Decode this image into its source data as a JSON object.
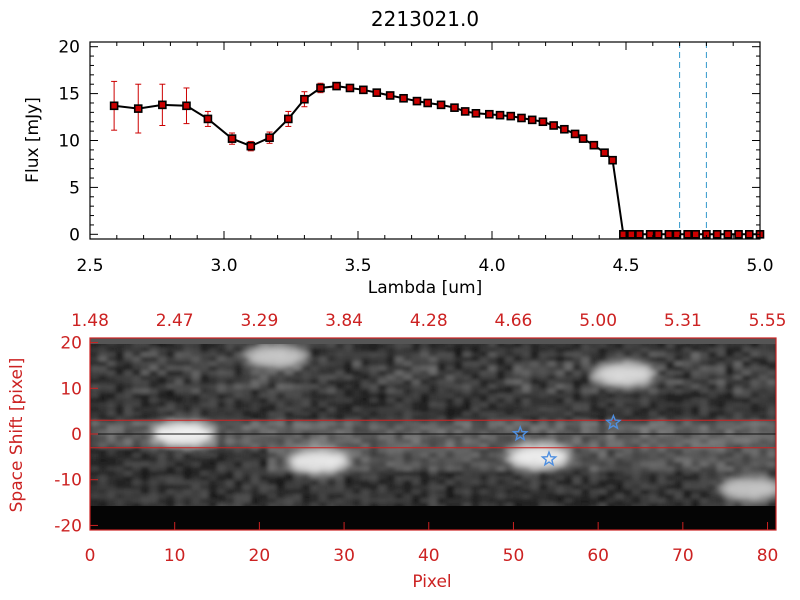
{
  "chart_data": [
    {
      "type": "line",
      "title": "2213021.0",
      "xlabel": "Lambda [um]",
      "ylabel": "Flux [mJy]",
      "xlim": [
        2.5,
        5.0
      ],
      "ylim": [
        -0.5,
        20.5
      ],
      "xticks": [
        "2.5",
        "3.0",
        "3.5",
        "4.0",
        "4.5",
        "5.0"
      ],
      "yticks": [
        "0",
        "5",
        "10",
        "15",
        "20"
      ],
      "xtick_values": [
        2.5,
        3.0,
        3.5,
        4.0,
        4.5,
        5.0
      ],
      "ytick_values": [
        0,
        5,
        10,
        15,
        20
      ],
      "line_color": "#000000",
      "marker_color": "#cc0000",
      "errorbar_color": "#cc0000",
      "ref_line_color": "#3399cc",
      "vertical_reference_lines": [
        4.7,
        4.8
      ],
      "series": [
        {
          "x": [
            2.59,
            2.68,
            2.77,
            2.86,
            2.94,
            3.03,
            3.1,
            3.17,
            3.24,
            3.3,
            3.36,
            3.42,
            3.47,
            3.52,
            3.57,
            3.62,
            3.67,
            3.72,
            3.76,
            3.81,
            3.86,
            3.9,
            3.94,
            3.99,
            4.03,
            4.07,
            4.11,
            4.15,
            4.19,
            4.23,
            4.27,
            4.31,
            4.34,
            4.38,
            4.42,
            4.45,
            4.49,
            4.52,
            4.55,
            4.59,
            4.62,
            4.66,
            4.69,
            4.73,
            4.76,
            4.8,
            4.84,
            4.88,
            4.92,
            4.96,
            5.0
          ],
          "y": [
            13.7,
            13.4,
            13.8,
            13.7,
            12.3,
            10.2,
            9.4,
            10.3,
            12.3,
            14.4,
            15.6,
            15.8,
            15.6,
            15.4,
            15.1,
            14.8,
            14.5,
            14.2,
            14.0,
            13.8,
            13.5,
            13.1,
            12.9,
            12.8,
            12.7,
            12.6,
            12.4,
            12.2,
            12.0,
            11.6,
            11.2,
            10.7,
            10.2,
            9.5,
            8.7,
            7.9,
            0,
            0,
            0,
            0,
            0,
            0,
            0,
            0,
            0,
            0,
            0,
            0,
            0,
            0,
            0
          ],
          "yerr": [
            2.6,
            2.6,
            2.2,
            1.9,
            0.8,
            0.6,
            0.5,
            0.6,
            0.8,
            0.8,
            0.5,
            0.2,
            0.2,
            0.2,
            0.2,
            0.2,
            0.2,
            0.2,
            0.2,
            0.2,
            0.2,
            0.2,
            0.2,
            0.2,
            0.2,
            0.2,
            0.2,
            0.2,
            0.2,
            0.2,
            0.2,
            0.2,
            0.2,
            0.2,
            0.2,
            0.2,
            0,
            0,
            0,
            0,
            0,
            0,
            0,
            0,
            0,
            0,
            0,
            0,
            0,
            0,
            0
          ]
        }
      ]
    },
    {
      "type": "heatmap",
      "xlabel": "Pixel",
      "ylabel": "Space Shift [pixel]",
      "xlim": [
        0,
        81
      ],
      "ylim": [
        -21,
        21
      ],
      "xticks": [
        "0",
        "10",
        "20",
        "30",
        "40",
        "50",
        "60",
        "70",
        "80"
      ],
      "xtick_values": [
        0,
        10,
        20,
        30,
        40,
        50,
        60,
        70,
        80
      ],
      "yticks": [
        "-20",
        "-10",
        "0",
        "10",
        "20"
      ],
      "ytick_values": [
        -20,
        -10,
        0,
        10,
        20
      ],
      "top_axis_ticks": [
        "1.48",
        "2.47",
        "3.29",
        "3.84",
        "4.28",
        "4.66",
        "5.00",
        "5.31",
        "5.55"
      ],
      "axis_color": "#cc2222",
      "colormap": "gray",
      "extraction_band": [
        -3,
        3
      ],
      "center_line": 0,
      "bright_features": [
        {
          "x": 11,
          "y": 0,
          "level": 1.0
        },
        {
          "x": 27,
          "y": -6,
          "level": 0.9
        },
        {
          "x": 53,
          "y": -5,
          "level": 0.95
        },
        {
          "x": 63,
          "y": 13,
          "level": 0.8
        },
        {
          "x": 22,
          "y": 17,
          "level": 0.6
        },
        {
          "x": 78,
          "y": -12,
          "level": 0.6
        }
      ],
      "star_markers": [
        {
          "x": 50.8,
          "y": 0
        },
        {
          "x": 54.2,
          "y": -5.5
        },
        {
          "x": 61.8,
          "y": 2.5
        }
      ],
      "star_color": "#4f8fe0"
    }
  ]
}
